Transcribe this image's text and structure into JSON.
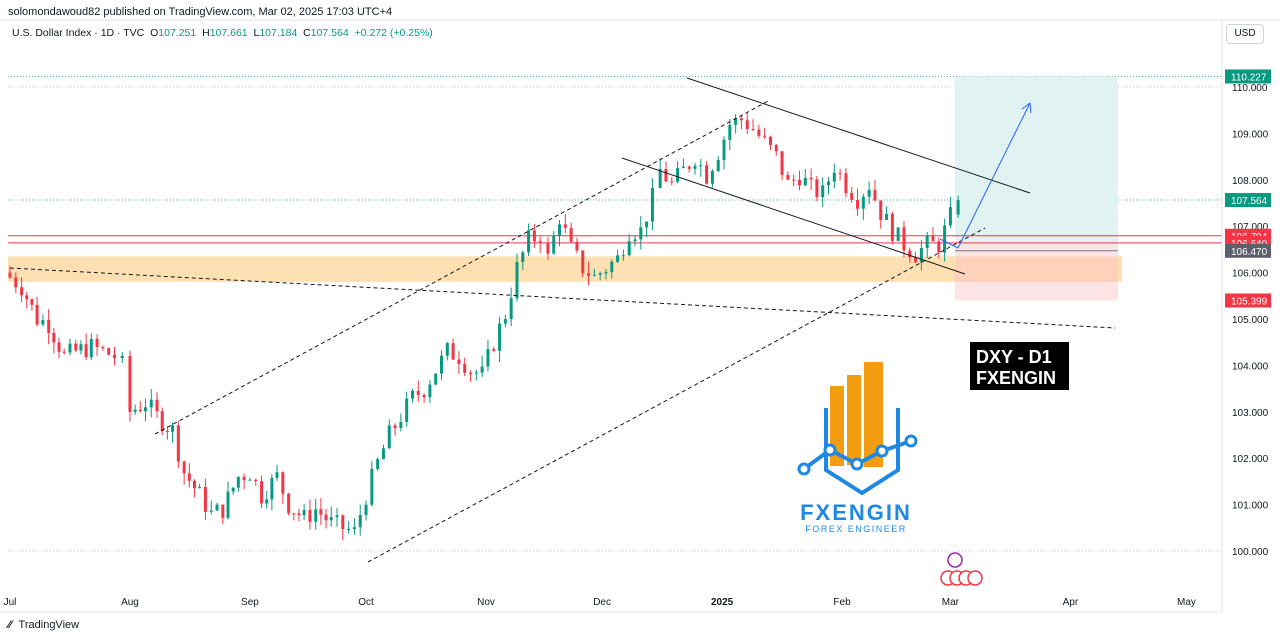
{
  "header": {
    "publisher": "solomondawoud82 published on TradingView.com, Mar 02, 2025 17:03 UTC+4"
  },
  "symbol_bar": {
    "name": "U.S. Dollar Index · 1D · TVC",
    "open_label": "O",
    "open": "107.251",
    "high_label": "H",
    "high": "107.661",
    "low_label": "L",
    "low": "107.184",
    "close_label": "C",
    "close": "107.564",
    "change": "+0.272 (+0.25%)"
  },
  "currency_button": "USD",
  "footer": {
    "brand": "TradingView"
  },
  "overlay": {
    "title_line1": "DXY - D1",
    "title_line2": "FXENGIN",
    "logo_name": "FXENGIN",
    "logo_tagline": "FOREX ENGINEER"
  },
  "colors": {
    "up": "#089981",
    "down": "#f23645",
    "zone": "#ffe0b2",
    "target_zone": "#e0f2f1",
    "stop_zone": "#fde4e4",
    "logo_orange": "#f39c12",
    "logo_blue": "#1e88e5"
  },
  "chart_data": {
    "type": "candlestick",
    "ylim": [
      99.6,
      110.5
    ],
    "y_ticks": [
      100.0,
      101.0,
      102.0,
      103.0,
      104.0,
      105.0,
      106.0,
      107.0,
      108.0,
      109.0,
      110.0
    ],
    "x_tick_labels": [
      {
        "label": "Jul",
        "day": 0
      },
      {
        "label": "Aug",
        "day": 31
      },
      {
        "label": "Sep",
        "day": 62
      },
      {
        "label": "Oct",
        "day": 92
      },
      {
        "label": "Nov",
        "day": 123
      },
      {
        "label": "Dec",
        "day": 153
      },
      {
        "label": "2025",
        "day": 184,
        "bold": true
      },
      {
        "label": "Feb",
        "day": 215
      },
      {
        "label": "Mar",
        "day": 243
      },
      {
        "label": "Apr",
        "day": 274
      },
      {
        "label": "May",
        "day": 304
      }
    ],
    "price_labels": [
      {
        "value": "110.227",
        "price": 110.227,
        "color": "#089981"
      },
      {
        "value": "107.564",
        "price": 107.564,
        "color": "#089981"
      },
      {
        "value": "106.794",
        "price": 106.794,
        "color": "#f23645"
      },
      {
        "value": "106.640",
        "price": 106.64,
        "color": "#f23645"
      },
      {
        "value": "106.470",
        "price": 106.47,
        "color": "#5d606b"
      },
      {
        "value": "105.399",
        "price": 105.399,
        "color": "#f23645"
      }
    ],
    "closes": [
      [
        0,
        105.9
      ],
      [
        3,
        105.7
      ],
      [
        7,
        105.0
      ],
      [
        10,
        104.9
      ],
      [
        14,
        104.2
      ],
      [
        17,
        104.3
      ],
      [
        21,
        104.4
      ],
      [
        24,
        104.3
      ],
      [
        27,
        104.2
      ],
      [
        29,
        104.0
      ],
      [
        31,
        103.0
      ],
      [
        35,
        103.2
      ],
      [
        38,
        102.9
      ],
      [
        42,
        102.6
      ],
      [
        45,
        101.7
      ],
      [
        49,
        101.2
      ],
      [
        52,
        100.8
      ],
      [
        55,
        100.9
      ],
      [
        59,
        101.6
      ],
      [
        62,
        101.7
      ],
      [
        65,
        101.2
      ],
      [
        69,
        101.6
      ],
      [
        72,
        101.0
      ],
      [
        76,
        100.7
      ],
      [
        79,
        100.9
      ],
      [
        83,
        100.6
      ],
      [
        86,
        100.5
      ],
      [
        89,
        100.4
      ],
      [
        92,
        101.2
      ],
      [
        95,
        101.9
      ],
      [
        98,
        102.5
      ],
      [
        101,
        102.9
      ],
      [
        104,
        103.3
      ],
      [
        107,
        103.5
      ],
      [
        110,
        103.9
      ],
      [
        113,
        104.3
      ],
      [
        116,
        104.2
      ],
      [
        119,
        103.9
      ],
      [
        122,
        103.8
      ],
      [
        125,
        104.5
      ],
      [
        128,
        105.1
      ],
      [
        131,
        106.1
      ],
      [
        134,
        106.7
      ],
      [
        137,
        106.8
      ],
      [
        139,
        106.3
      ],
      [
        142,
        107.2
      ],
      [
        145,
        106.5
      ],
      [
        148,
        106.1
      ],
      [
        151,
        105.9
      ],
      [
        154,
        106.1
      ],
      [
        157,
        106.3
      ],
      [
        160,
        106.9
      ],
      [
        163,
        106.9
      ],
      [
        166,
        107.6
      ],
      [
        168,
        108.2
      ],
      [
        171,
        107.9
      ],
      [
        174,
        108.2
      ],
      [
        177,
        108.5
      ],
      [
        180,
        108.1
      ],
      [
        183,
        108.6
      ],
      [
        186,
        109.2
      ],
      [
        189,
        109.3
      ],
      [
        192,
        109.1
      ],
      [
        195,
        108.8
      ],
      [
        198,
        108.5
      ],
      [
        201,
        107.9
      ],
      [
        204,
        108.1
      ],
      [
        207,
        107.8
      ],
      [
        210,
        107.7
      ],
      [
        213,
        108.3
      ],
      [
        216,
        107.9
      ],
      [
        219,
        107.6
      ],
      [
        222,
        107.9
      ],
      [
        225,
        107.3
      ],
      [
        228,
        106.9
      ],
      [
        231,
        106.6
      ],
      [
        234,
        106.4
      ],
      [
        237,
        106.6
      ],
      [
        240,
        106.6
      ],
      [
        243,
        107.2
      ],
      [
        245,
        107.56
      ]
    ],
    "annotations": [
      "Resistance / support zone (orange) near 106.0",
      "Long position: entry 106.640, target 110.227, stop 105.399"
    ]
  }
}
